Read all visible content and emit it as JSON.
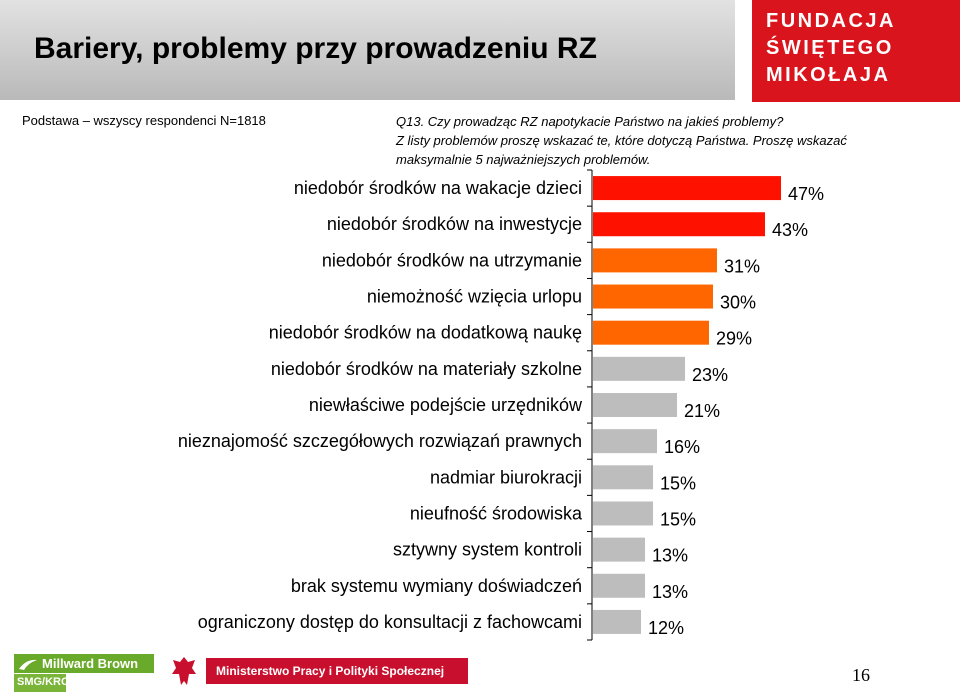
{
  "slide": {
    "title": "Bariery, problemy przy prowadzeniu RZ",
    "base": "Podstawa – wszyscy respondenci N=1818",
    "question_lines": [
      "Q13. Czy prowadząc RZ napotykacie Państwo na jakieś problemy?",
      "Z listy problemów proszę wskazać te, które dotyczą Państwa. Proszę wskazać",
      "maksymalnie 5 najważniejszych problemów."
    ],
    "page_number": "16"
  },
  "logo": {
    "lines": [
      "FUNDACJA",
      "ŚWIĘTEGO",
      "MIKOŁAJA"
    ]
  },
  "footer": {
    "millward_brown": "Millward Brown",
    "smg_krc": "SMG/KRC",
    "ministry": "Ministerstwo Pracy i Polityki Społecznej"
  },
  "colors": {
    "top1": "#ff1100",
    "top2": "#ff6600",
    "rest": "#bdbdbd",
    "title_bg": "#c8c8c8",
    "logo_bg": "#d9141c"
  },
  "chart_data": {
    "type": "bar",
    "orientation": "horizontal",
    "categories": [
      "niedobór środków na wakacje dzieci",
      "niedobór środków na inwestycje",
      "niedobór środków na utrzymanie",
      "niemożność wzięcia urlopu",
      "niedobór środków na dodatkową naukę",
      "niedobór środków na materiały szkolne",
      "niewłaściwe podejście urzędników",
      "nieznajomość szczegółowych rozwiązań prawnych",
      "nadmiar biurokracji",
      "nieufność środowiska",
      "sztywny system kontroli",
      "brak systemu wymiany doświadczeń",
      "ograniczony dostęp do konsultacji z fachowcami"
    ],
    "values": [
      47,
      43,
      31,
      30,
      29,
      23,
      21,
      16,
      15,
      15,
      13,
      13,
      12
    ],
    "value_labels": [
      "47%",
      "43%",
      "31%",
      "30%",
      "29%",
      "23%",
      "21%",
      "16%",
      "15%",
      "15%",
      "13%",
      "13%",
      "12%"
    ],
    "bar_colors": [
      "#ff1100",
      "#ff1100",
      "#ff6600",
      "#ff6600",
      "#ff6600",
      "#bdbdbd",
      "#bdbdbd",
      "#bdbdbd",
      "#bdbdbd",
      "#bdbdbd",
      "#bdbdbd",
      "#bdbdbd",
      "#bdbdbd"
    ],
    "unit": "%",
    "xlim": [
      0,
      50
    ],
    "grid": false,
    "legend": "none"
  }
}
